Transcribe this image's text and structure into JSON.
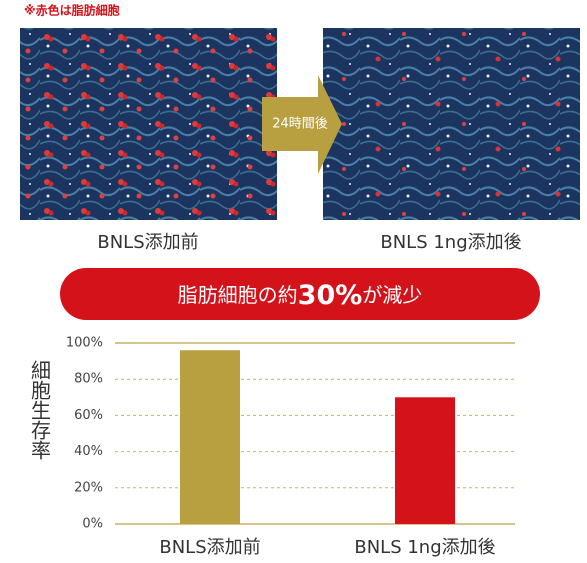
{
  "note": "※赤色は脂肪細胞",
  "images": {
    "before_label": "BNLS添加前",
    "arrow_label": "24時間後",
    "after_label": "BNLS 1ng添加後"
  },
  "banner": {
    "prefix": "脂肪細胞の約",
    "emphasis": "30%",
    "suffix": "が減少"
  },
  "chart_data": {
    "type": "bar",
    "y_label": "細胞生存率",
    "categories": [
      "BNLS添加前",
      "BNLS 1ng添加後"
    ],
    "values": [
      96,
      70
    ],
    "colors": [
      "#b8a040",
      "#d4121a"
    ],
    "ylim": [
      0,
      100
    ],
    "yticks": [
      {
        "value": 0,
        "label": "0%"
      },
      {
        "value": 20,
        "label": "20%"
      },
      {
        "value": 40,
        "label": "40%"
      },
      {
        "value": 60,
        "label": "60%"
      },
      {
        "value": 80,
        "label": "80%"
      },
      {
        "value": 100,
        "label": "100%"
      }
    ],
    "grid": true,
    "grid_color": "#c8b060"
  }
}
